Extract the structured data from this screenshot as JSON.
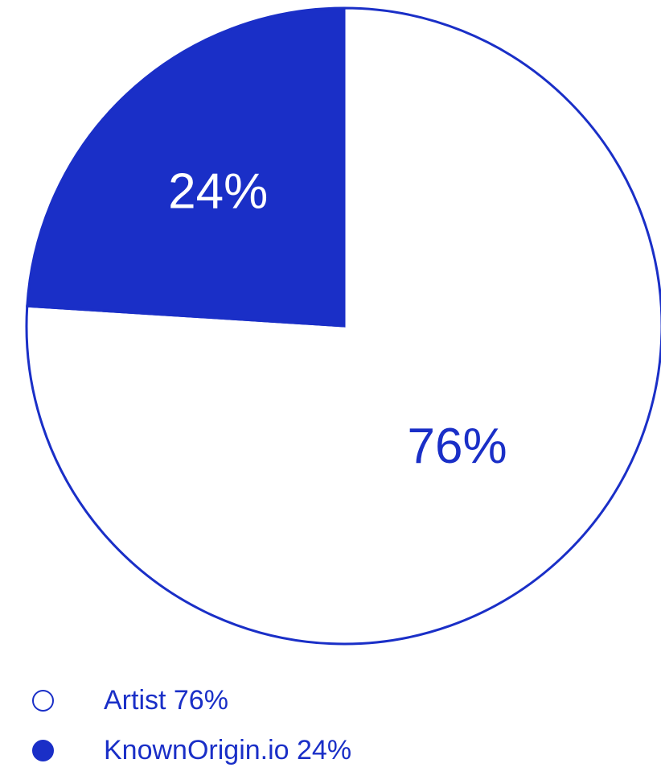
{
  "chart_data": {
    "type": "pie",
    "slices": [
      {
        "name": "Artist",
        "value": 76,
        "label": "76%",
        "legend": "Artist 76%",
        "fill": "#ffffff",
        "label_color": "#1a2fc7"
      },
      {
        "name": "KnownOrigin.io",
        "value": 24,
        "label": "24%",
        "legend": "KnownOrigin.io 24%",
        "fill": "#1a2fc7",
        "label_color": "#ffffff"
      }
    ],
    "stroke_color": "#1a2fc7",
    "legend_placement": "bottom-left"
  }
}
